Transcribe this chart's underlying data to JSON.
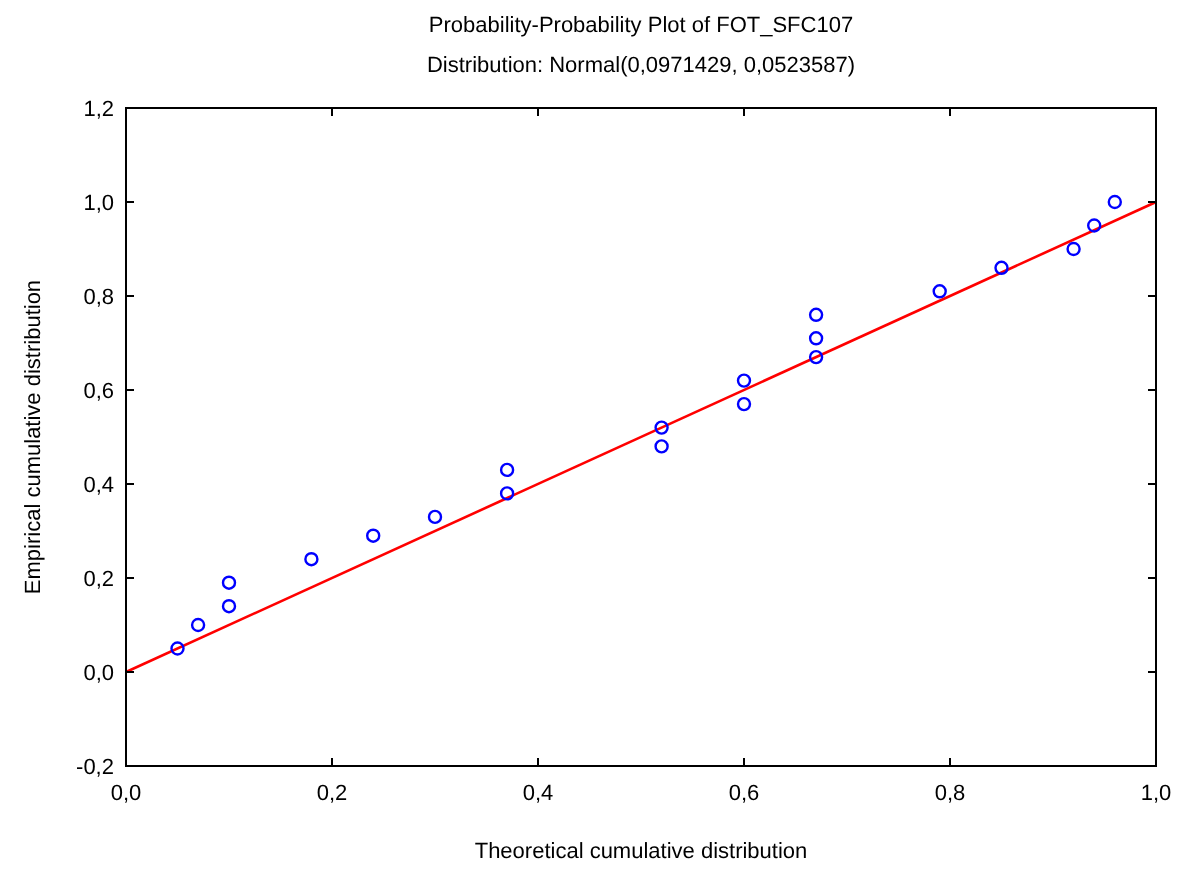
{
  "chart_data": {
    "type": "scatter",
    "title": "Probability-Probability Plot of FOT_SFC107",
    "subtitle": "Distribution: Normal(0,0971429, 0,0523587)",
    "xlabel": "Theoretical cumulative distribution",
    "ylabel": "Empirical cumulative distribution",
    "marker": "circle",
    "grid": false,
    "xlim": [
      0,
      1
    ],
    "ylim": [
      -0.2,
      1.2
    ],
    "xticks": [
      {
        "value": 0,
        "label": "0,0"
      },
      {
        "value": 0.2,
        "label": "0,2"
      },
      {
        "value": 0.4,
        "label": "0,4"
      },
      {
        "value": 0.6,
        "label": "0,6"
      },
      {
        "value": 0.8,
        "label": "0,8"
      },
      {
        "value": 1,
        "label": "1,0"
      }
    ],
    "yticks": [
      {
        "value": -0.2,
        "label": "-0,2"
      },
      {
        "value": 0,
        "label": "0,0"
      },
      {
        "value": 0.2,
        "label": "0,2"
      },
      {
        "value": 0.4,
        "label": "0,4"
      },
      {
        "value": 0.6,
        "label": "0,6"
      },
      {
        "value": 0.8,
        "label": "0,8"
      },
      {
        "value": 1,
        "label": "1,0"
      },
      {
        "value": 1.2,
        "label": "1,2"
      }
    ],
    "series": [
      {
        "color": "#0000ff",
        "x": [
          0.05,
          0.07,
          0.1,
          0.1,
          0.18,
          0.24,
          0.3,
          0.37,
          0.37,
          0.52,
          0.52,
          0.6,
          0.6,
          0.67,
          0.67,
          0.67,
          0.79,
          0.85,
          0.92,
          0.94,
          0.96
        ],
        "values": [
          0.05,
          0.1,
          0.14,
          0.19,
          0.24,
          0.29,
          0.33,
          0.38,
          0.43,
          0.48,
          0.52,
          0.57,
          0.62,
          0.67,
          0.71,
          0.76,
          0.81,
          0.86,
          0.9,
          0.95,
          1.0
        ]
      },
      {
        "type": "line",
        "color": "#ff0000",
        "x": [
          0,
          1
        ],
        "values": [
          0,
          1
        ],
        "marker": "none",
        "line_style": "solid"
      }
    ]
  }
}
